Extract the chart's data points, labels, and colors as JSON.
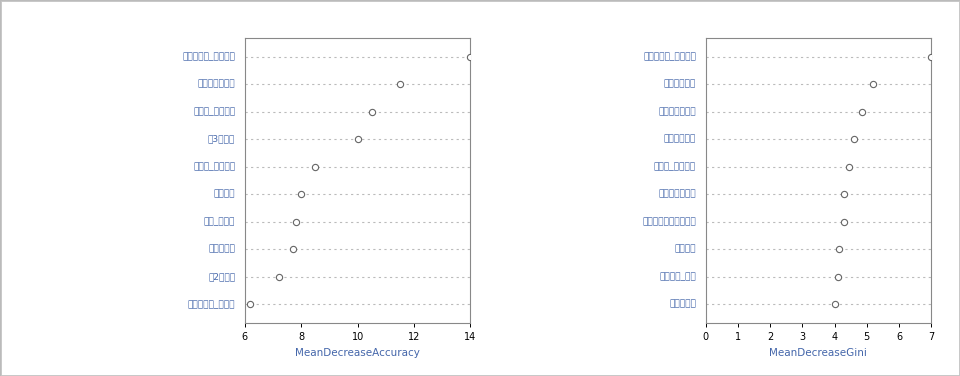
{
  "left_labels": [
    "민주시민성_공동체성",
    "학생참여형수업",
    "공동체_참여의식",
    "고3학생수",
    "공동체_협력학습",
    "졸업자수",
    "창의_탐구심",
    "석사교원수",
    "고2학생수",
    "진로성숙도_계획성"
  ],
  "left_values": [
    14.0,
    11.5,
    10.5,
    10.0,
    8.5,
    8.0,
    7.8,
    7.7,
    7.2,
    6.2
  ],
  "left_xlabel": "MeanDecreaseAccuracy",
  "left_xlim": [
    6,
    14
  ],
  "left_xticks": [
    6,
    8,
    10,
    12,
    14
  ],
  "right_labels": [
    "민주시민성_공동체성",
    "도서관좌석수",
    "학생참여형수업",
    "도서관장서수",
    "공동체_참여의식",
    "월평균가구소득",
    "교원용컴퓨터보유현황",
    "수업태도",
    "학교용지_총계",
    "석사교원수"
  ],
  "right_values": [
    7.0,
    5.2,
    4.85,
    4.6,
    4.45,
    4.3,
    4.28,
    4.15,
    4.12,
    4.0
  ],
  "right_xlabel": "MeanDecreaseGini",
  "right_xlim": [
    0,
    7
  ],
  "right_xticks": [
    0,
    1,
    2,
    3,
    4,
    5,
    6,
    7
  ],
  "dot_color": "white",
  "dot_edgecolor": "#666666",
  "line_color": "#bbbbbb",
  "fig_facecolor": "#ffffff",
  "panel_facecolor": "#ffffff",
  "label_color": "#4466aa",
  "xlabel_color": "#4466aa",
  "tick_color": "#000000",
  "spine_color": "#888888"
}
